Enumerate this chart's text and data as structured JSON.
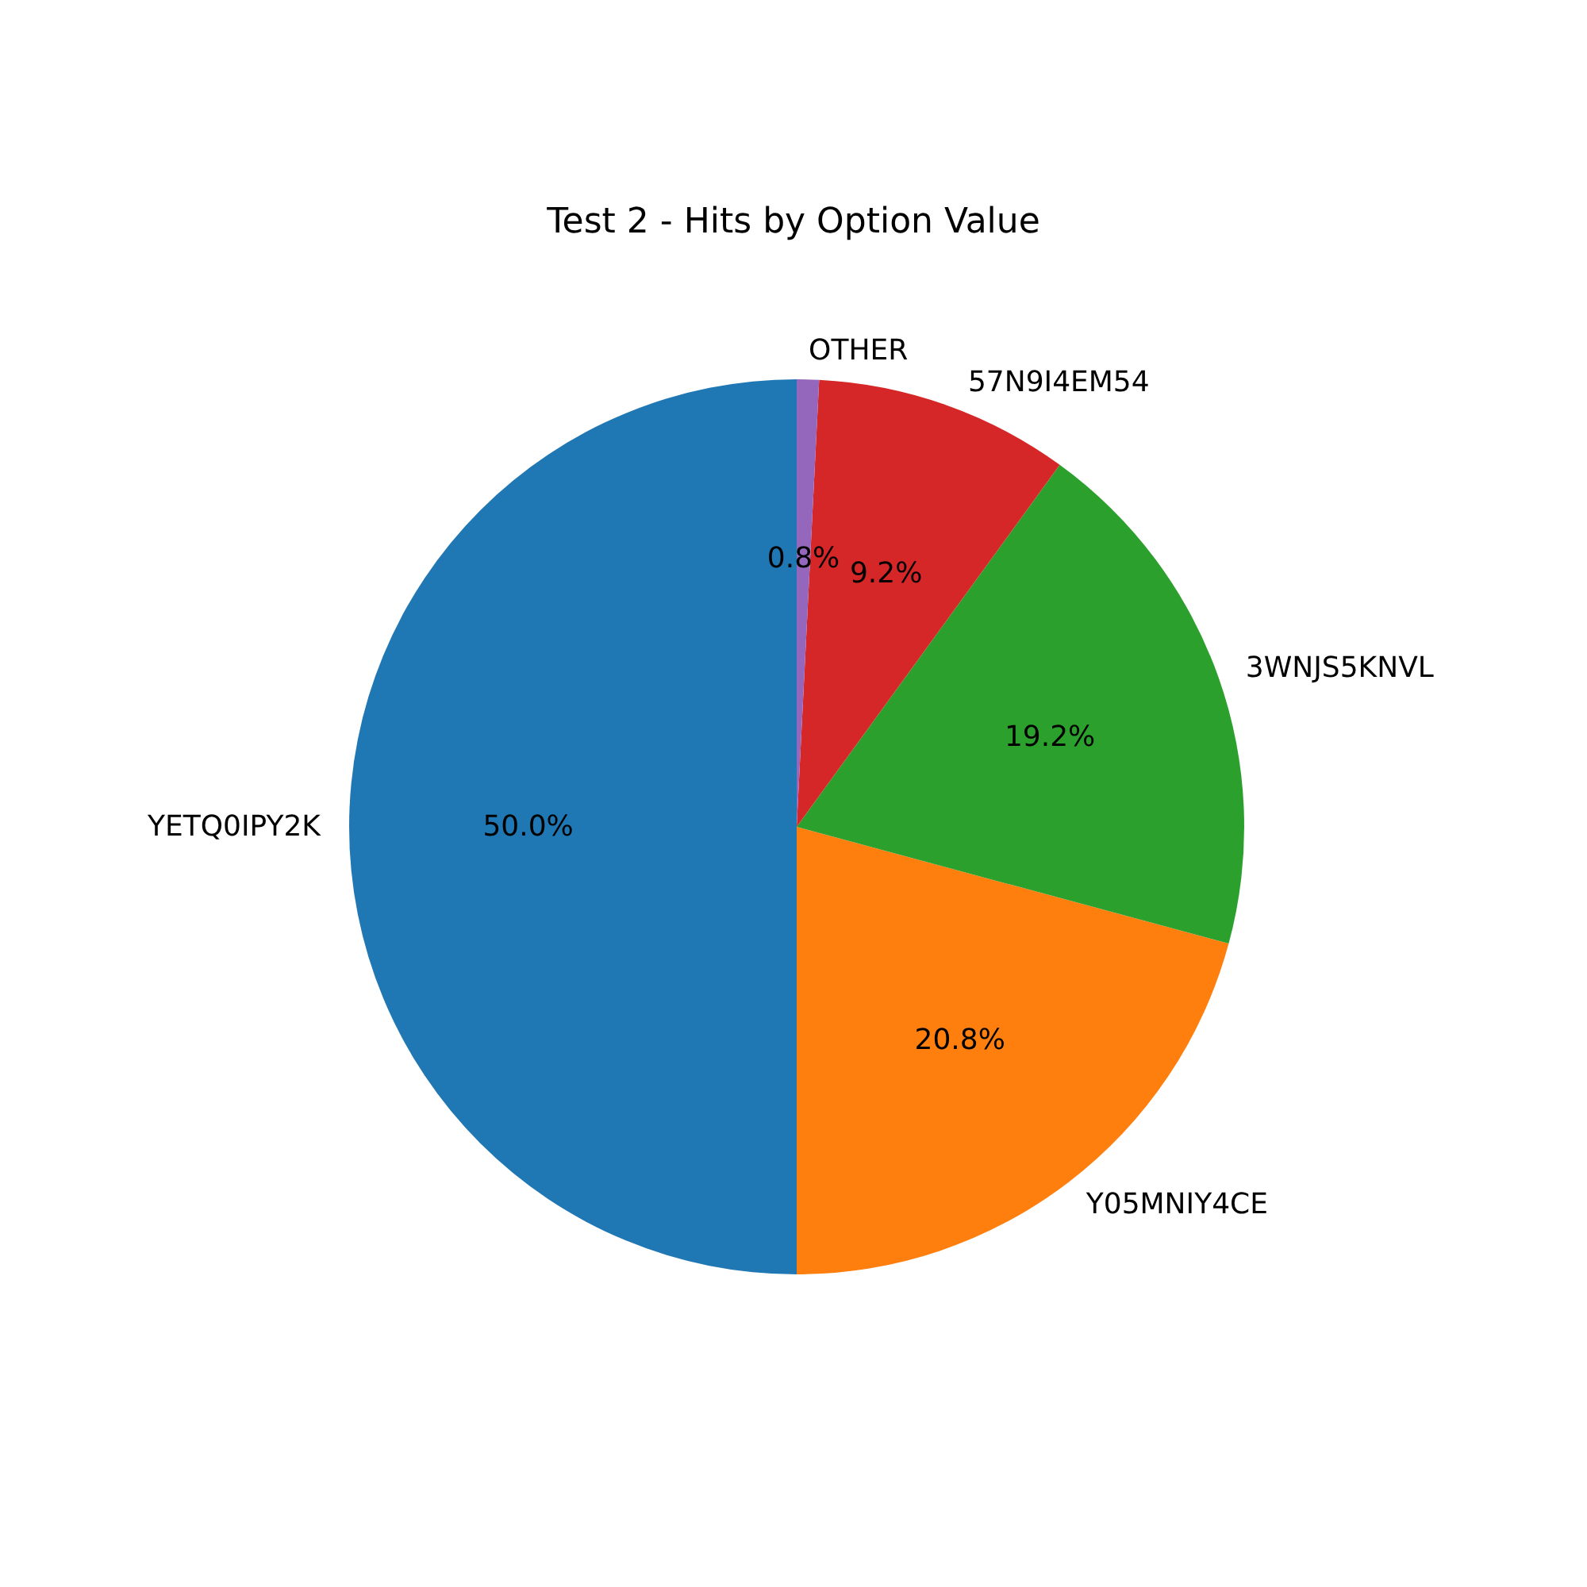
{
  "chart_data": {
    "type": "pie",
    "title": "Test 2 - Hits by Option Value",
    "categories": [
      "YETQ0IPY2K",
      "Y05MNIY4CE",
      "3WNJS5KNVL",
      "57N9I4EM54",
      "OTHER"
    ],
    "values": [
      50.0,
      20.8,
      19.2,
      9.2,
      0.8
    ],
    "colors": [
      "#1f77b4",
      "#ff7f0e",
      "#2ca02c",
      "#d62728",
      "#9467bd"
    ],
    "value_labels": [
      "50.0%",
      "20.8%",
      "19.2%",
      "9.2%",
      "0.8%"
    ]
  }
}
